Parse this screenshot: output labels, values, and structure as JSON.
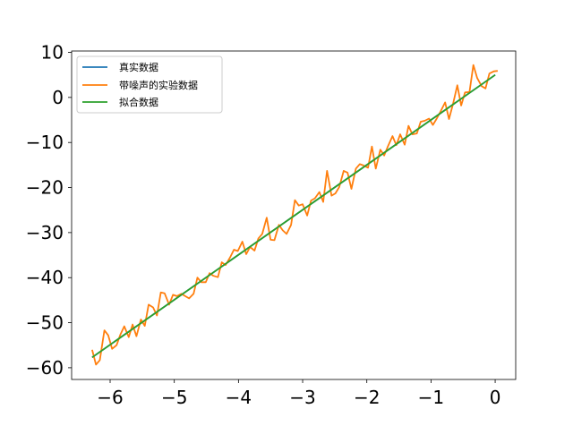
{
  "chart_data": {
    "type": "line",
    "title": "",
    "xlabel": "",
    "ylabel": "",
    "xlim": [
      -6.6,
      0.32
    ],
    "ylim": [
      -62.6,
      10.3
    ],
    "x_ticks": [
      -6,
      -5,
      -4,
      -3,
      -2,
      -1,
      0
    ],
    "x_tick_labels": [
      "−6",
      "−5",
      "−4",
      "−3",
      "−2",
      "−1",
      "0"
    ],
    "y_ticks": [
      10,
      0,
      -10,
      -20,
      -30,
      -40,
      -50,
      -60
    ],
    "y_tick_labels": [
      "10",
      "0",
      "−10",
      "−20",
      "−30",
      "−40",
      "−50",
      "−60"
    ],
    "grid": false,
    "legend_position": "top-left",
    "colors": {
      "real": "#1f77b4",
      "noisy": "#ff7f0e",
      "fit": "#2ca02c"
    },
    "series": [
      {
        "name": "真实数据",
        "key": "real",
        "x": [
          -6.28,
          0.0
        ],
        "y": [
          -57.7,
          5.0
        ]
      },
      {
        "name": "带噪声的实验数据",
        "key": "noisy",
        "x": [
          -6.28,
          -6.22,
          -6.16,
          -6.09,
          -6.03,
          -5.97,
          -5.9,
          -5.84,
          -5.78,
          -5.71,
          -5.65,
          -5.59,
          -5.52,
          -5.46,
          -5.4,
          -5.33,
          -5.27,
          -5.21,
          -5.15,
          -5.08,
          -5.02,
          -4.96,
          -4.89,
          -4.83,
          -4.77,
          -4.7,
          -4.64,
          -4.58,
          -4.51,
          -4.45,
          -4.39,
          -4.32,
          -4.26,
          -4.2,
          -4.13,
          -4.07,
          -4.01,
          -3.94,
          -3.88,
          -3.82,
          -3.75,
          -3.69,
          -3.63,
          -3.56,
          -3.5,
          -3.44,
          -3.37,
          -3.31,
          -3.25,
          -3.18,
          -3.12,
          -3.06,
          -3.0,
          -2.93,
          -2.87,
          -2.81,
          -2.74,
          -2.68,
          -2.62,
          -2.55,
          -2.49,
          -2.43,
          -2.36,
          -2.3,
          -2.24,
          -2.17,
          -2.11,
          -2.05,
          -1.98,
          -1.92,
          -1.86,
          -1.79,
          -1.73,
          -1.67,
          -1.6,
          -1.54,
          -1.48,
          -1.41,
          -1.35,
          -1.29,
          -1.22,
          -1.16,
          -1.1,
          -1.03,
          -0.97,
          -0.91,
          -0.85,
          -0.78,
          -0.72,
          -0.66,
          -0.59,
          -0.53,
          -0.47,
          -0.4,
          -0.34,
          -0.28,
          -0.21,
          -0.15,
          -0.09,
          -0.02,
          0.04
        ],
        "y": [
          -56.0,
          -59.3,
          -58.3,
          -51.7,
          -52.8,
          -55.8,
          -55.0,
          -52.6,
          -50.8,
          -53.2,
          -50.4,
          -53.0,
          -49.3,
          -50.7,
          -46.0,
          -46.6,
          -48.4,
          -43.3,
          -43.5,
          -46.0,
          -43.8,
          -44.1,
          -43.6,
          -44.1,
          -44.6,
          -43.6,
          -40.0,
          -41.0,
          -41.0,
          -39.0,
          -39.6,
          -39.9,
          -36.6,
          -37.2,
          -35.5,
          -33.8,
          -34.1,
          -32.0,
          -34.8,
          -33.2,
          -34.0,
          -31.3,
          -30.3,
          -26.7,
          -31.6,
          -31.7,
          -28.3,
          -29.5,
          -30.3,
          -28.3,
          -22.8,
          -24.0,
          -23.7,
          -26.2,
          -22.9,
          -22.4,
          -21.0,
          -23.2,
          -16.3,
          -21.8,
          -21.3,
          -19.9,
          -16.3,
          -16.7,
          -20.3,
          -15.8,
          -14.8,
          -15.1,
          -15.6,
          -10.9,
          -15.8,
          -11.6,
          -12.9,
          -10.8,
          -8.6,
          -10.6,
          -8.2,
          -10.5,
          -6.3,
          -8.2,
          -8.0,
          -5.4,
          -5.2,
          -4.7,
          -6.1,
          -4.7,
          -3.1,
          -1.1,
          -4.8,
          -1.6,
          2.7,
          -1.8,
          1.1,
          1.2,
          7.2,
          4.3,
          2.5,
          2.0,
          5.3,
          5.8,
          5.9
        ]
      },
      {
        "name": "拟合数据",
        "key": "fit",
        "x": [
          -6.28,
          0.0
        ],
        "y": [
          -57.7,
          5.0
        ]
      }
    ]
  }
}
